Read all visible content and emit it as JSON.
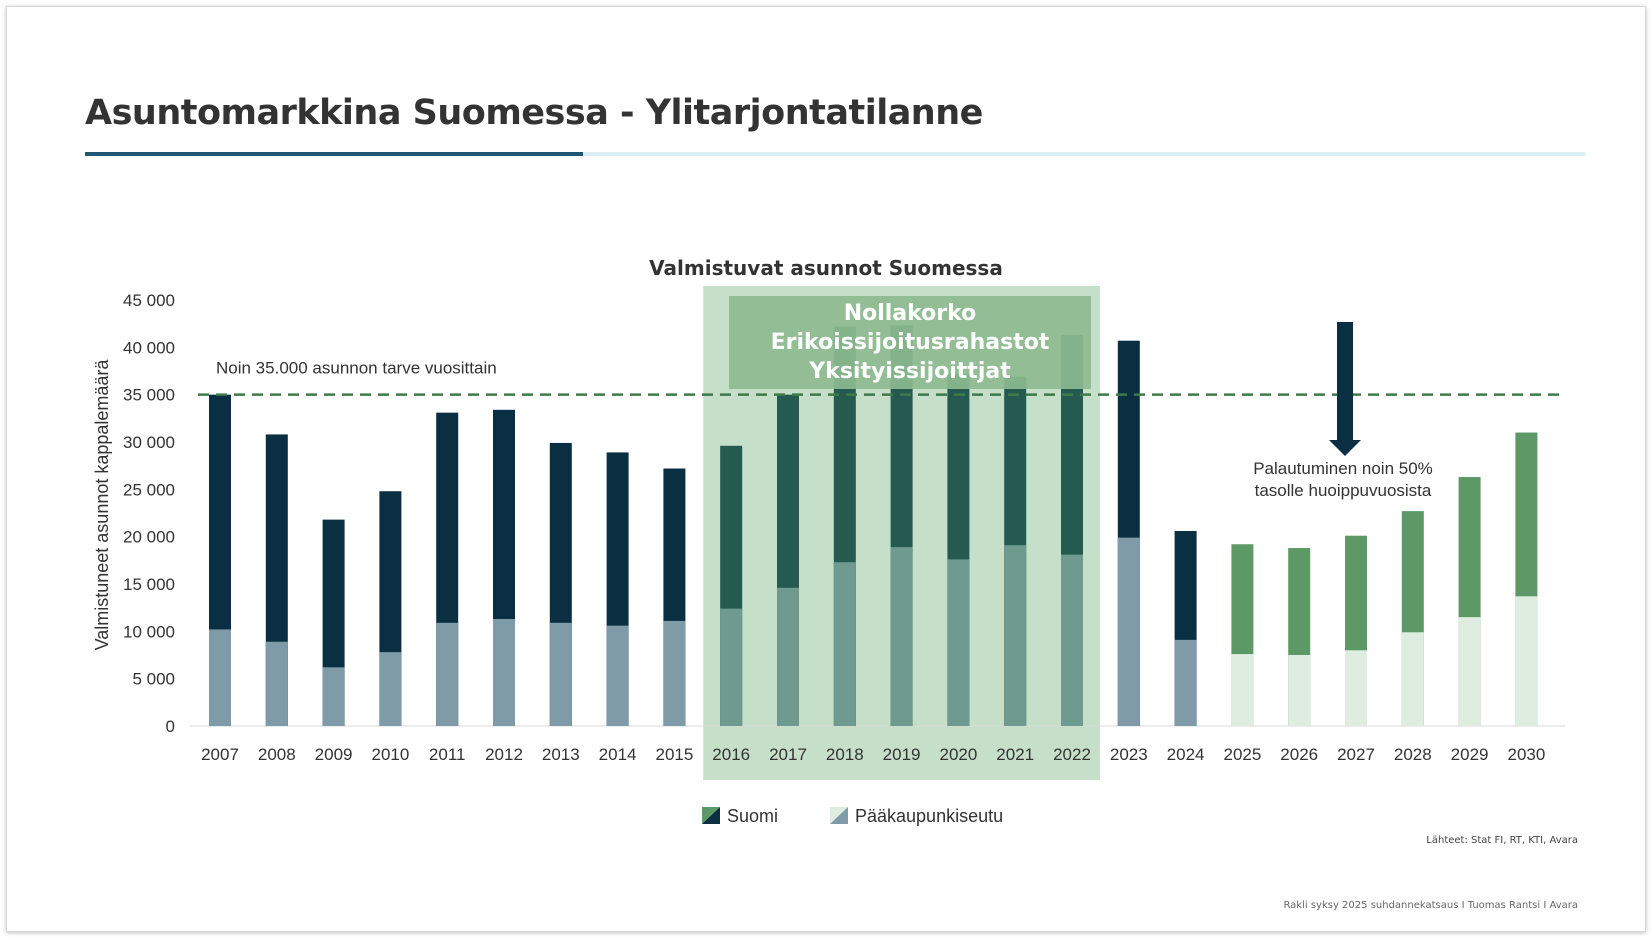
{
  "slide": {
    "title": "Asuntomarkkina Suomessa - Ylitarjontatilanne",
    "source": "Lähteet: Stat FI, RT, KTI, Avara",
    "footer": "Rakli syksy 2025 suhdannekatsaus I Tuomas Rantsi I Avara"
  },
  "chart_data": {
    "type": "bar",
    "stacked": false,
    "title": "Valmistuvat asunnot Suomessa",
    "ylabel": "Valmistuneet asunnot kappalemäärä",
    "xlabel": "",
    "ylim": [
      0,
      45000
    ],
    "yticks": [
      "0",
      "5 000",
      "10 000",
      "15 000",
      "20 000",
      "25 000",
      "30 000",
      "35 000",
      "40 000",
      "45 000"
    ],
    "categories": [
      "2007",
      "2008",
      "2009",
      "2010",
      "2011",
      "2012",
      "2013",
      "2014",
      "2015",
      "2016",
      "2017",
      "2018",
      "2019",
      "2020",
      "2021",
      "2022",
      "2023",
      "2024",
      "2025",
      "2026",
      "2027",
      "2028",
      "2029",
      "2030"
    ],
    "series": [
      {
        "name": "Suomi",
        "values": [
          35000,
          30800,
          21800,
          24800,
          33100,
          33400,
          29900,
          28900,
          27200,
          29600,
          35000,
          42200,
          42300,
          37200,
          36900,
          41300,
          40700,
          20600,
          19200,
          18800,
          20100,
          22700,
          26300,
          31000
        ]
      },
      {
        "name": "Pääkaupunkiseutu",
        "values": [
          10200,
          8900,
          6200,
          7800,
          10900,
          11300,
          10900,
          10600,
          11100,
          12400,
          14600,
          17300,
          18900,
          17600,
          19100,
          18100,
          19900,
          9100,
          7600,
          7500,
          8000,
          9900,
          11500,
          13700
        ]
      }
    ],
    "reference_line": {
      "value": 35000,
      "label": "Noin 35.000 asunnon tarve vuosittain",
      "color": "#3e7a4a"
    },
    "highlight": {
      "from": "2016",
      "to": "2022",
      "lines": [
        "Nollakorko",
        "Erikoissijoitusrahastot",
        "Yksityissijoittjat"
      ]
    },
    "annotation": {
      "lines": [
        "Palautuminen noin 50%",
        "tasolle huoippuvuosista"
      ]
    },
    "forecast_from": "2025",
    "legend_position": "bottom",
    "grid": false,
    "colors": {
      "historic_dark": "#0a2e42",
      "historic_light": "#7f9ba8",
      "highlight_dark": "#245a50",
      "highlight_light": "#6f9a90",
      "forecast_dark": "#5d9966",
      "forecast_light": "#deede0",
      "highlight_box": "#c6dfc8",
      "highlight_label_box": "#8dba90",
      "arrow": "#0a2e42"
    }
  }
}
